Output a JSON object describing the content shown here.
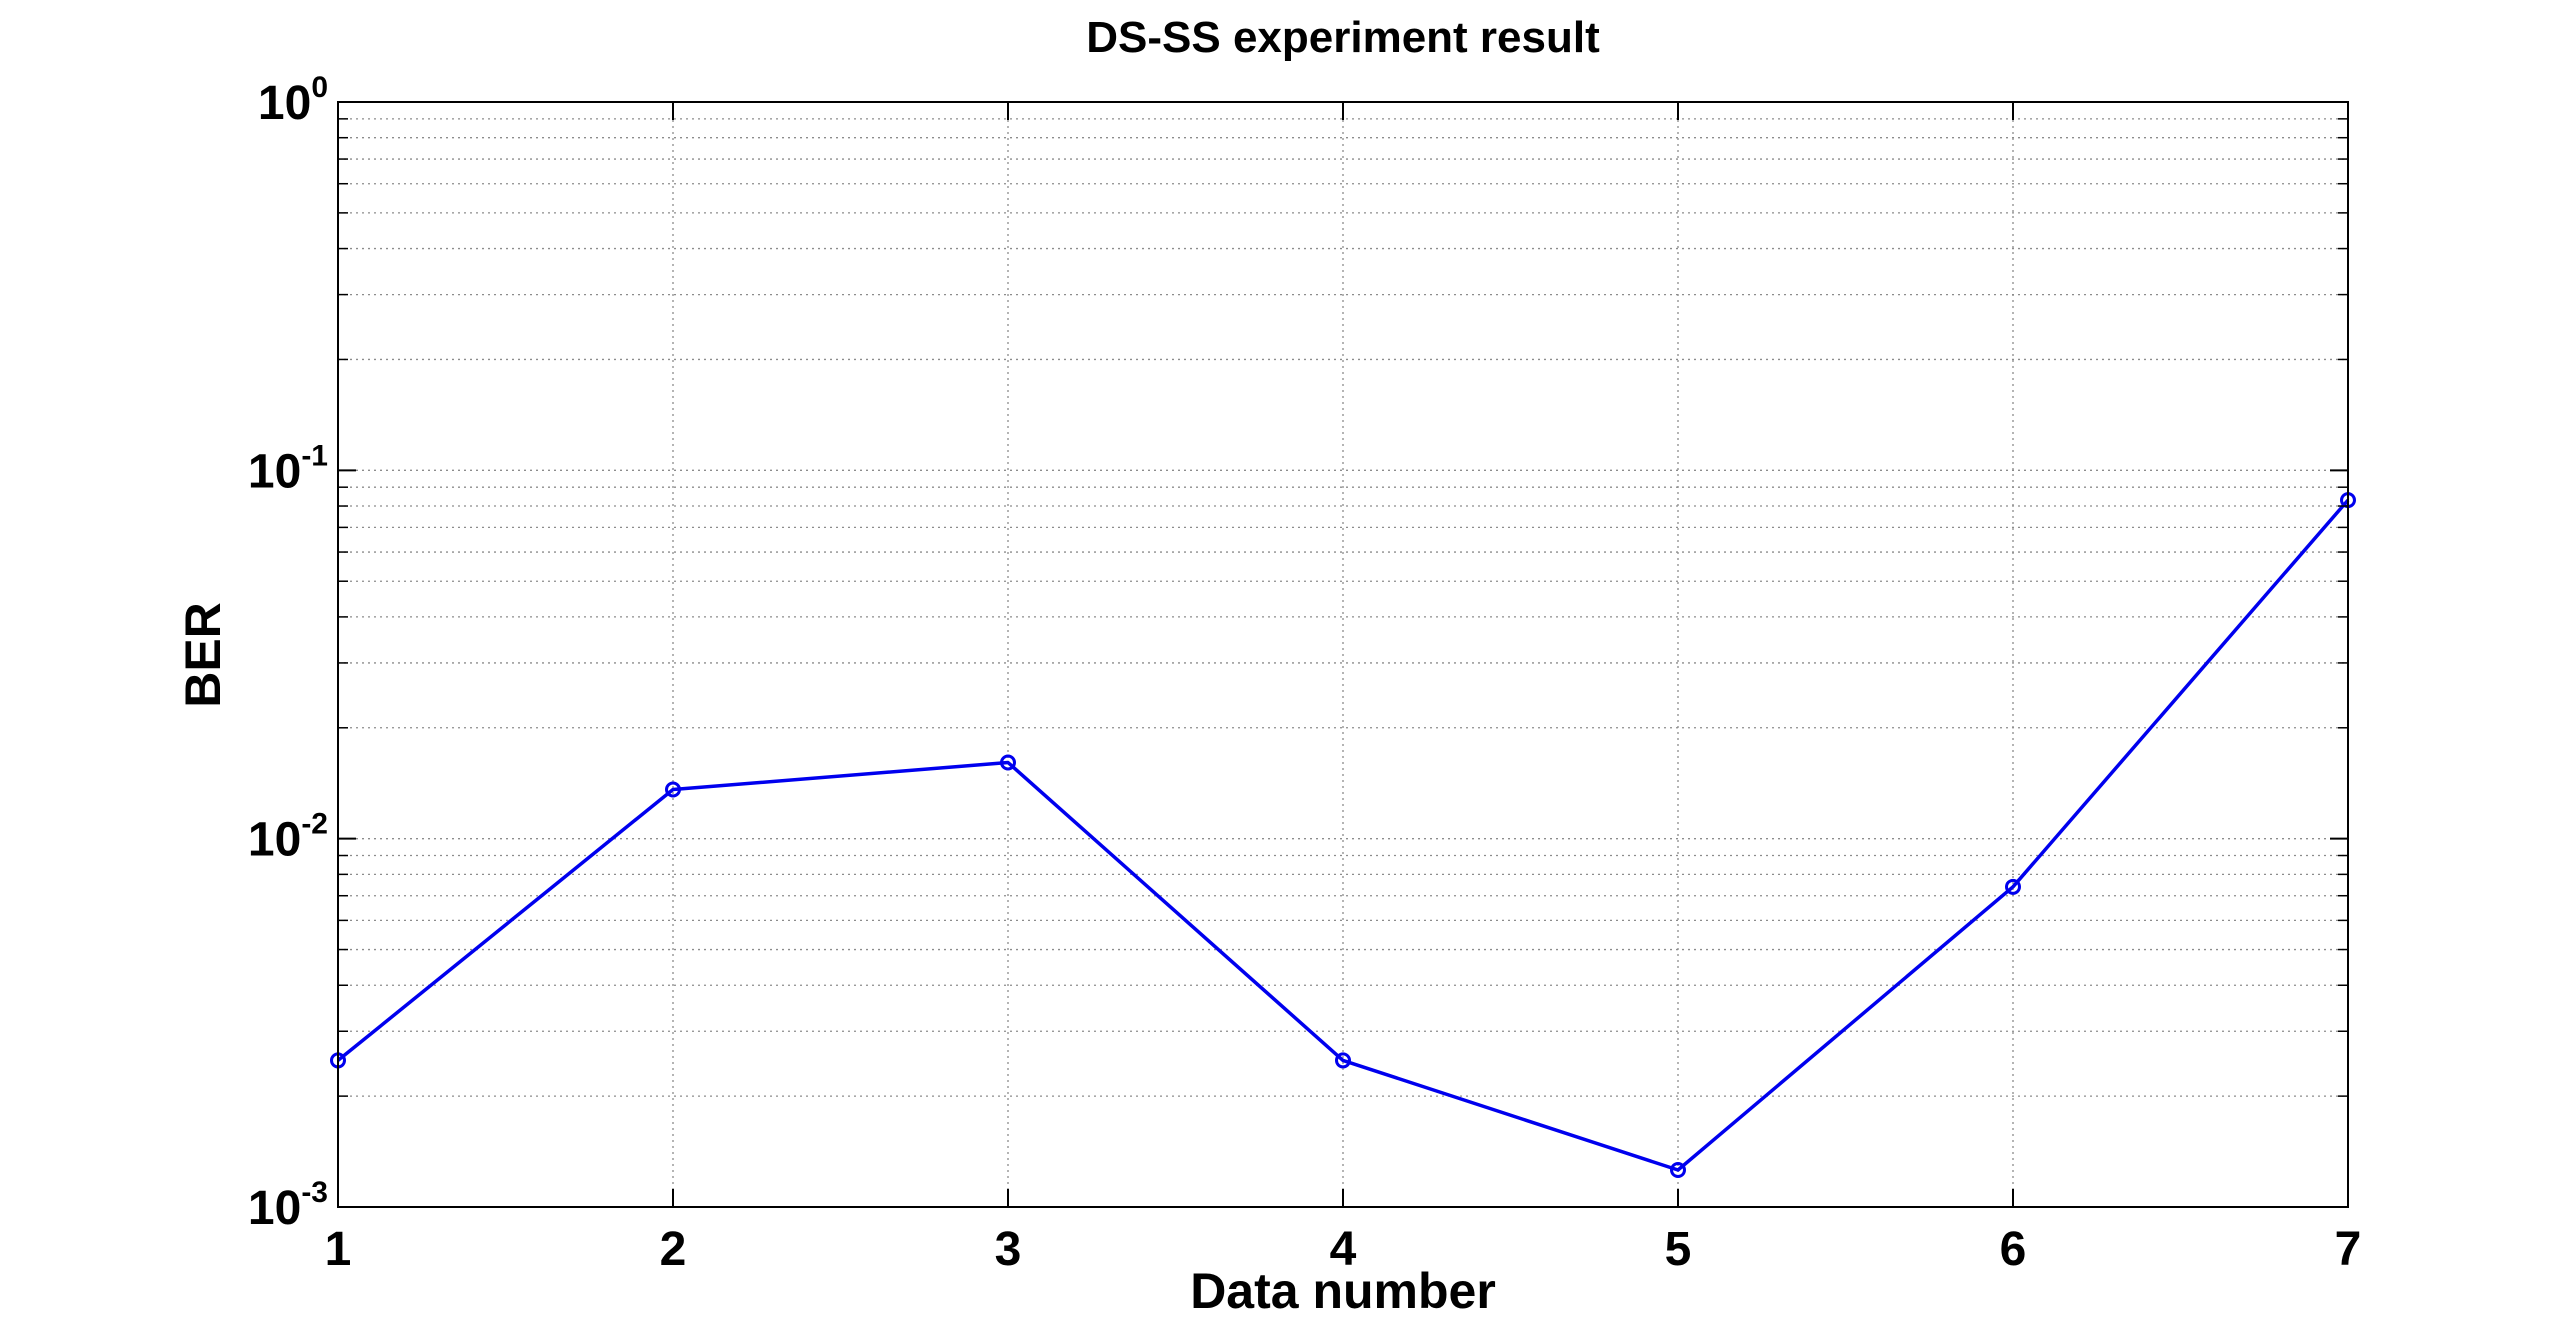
{
  "chart_data": {
    "type": "line",
    "title": "DS-SS experiment result",
    "xlabel": "Data number",
    "ylabel": "BER",
    "xlim": [
      1,
      7
    ],
    "ylim": [
      0.001,
      1
    ],
    "yscale": "log",
    "grid": true,
    "x_ticks": [
      "1",
      "2",
      "3",
      "4",
      "5",
      "6",
      "7"
    ],
    "y_ticks": [
      {
        "value": 0.001,
        "base": "10",
        "exponent": "-3"
      },
      {
        "value": 0.01,
        "base": "10",
        "exponent": "-2"
      },
      {
        "value": 0.1,
        "base": "10",
        "exponent": "-1"
      },
      {
        "value": 1,
        "base": "10",
        "exponent": "0"
      }
    ],
    "series": [
      {
        "color": "#0000ee",
        "marker": "circle",
        "x": [
          1,
          2,
          3,
          4,
          5,
          6,
          7
        ],
        "y": [
          0.0025,
          0.0136,
          0.0161,
          0.0025,
          0.00126,
          0.0074,
          0.083
        ]
      }
    ]
  }
}
